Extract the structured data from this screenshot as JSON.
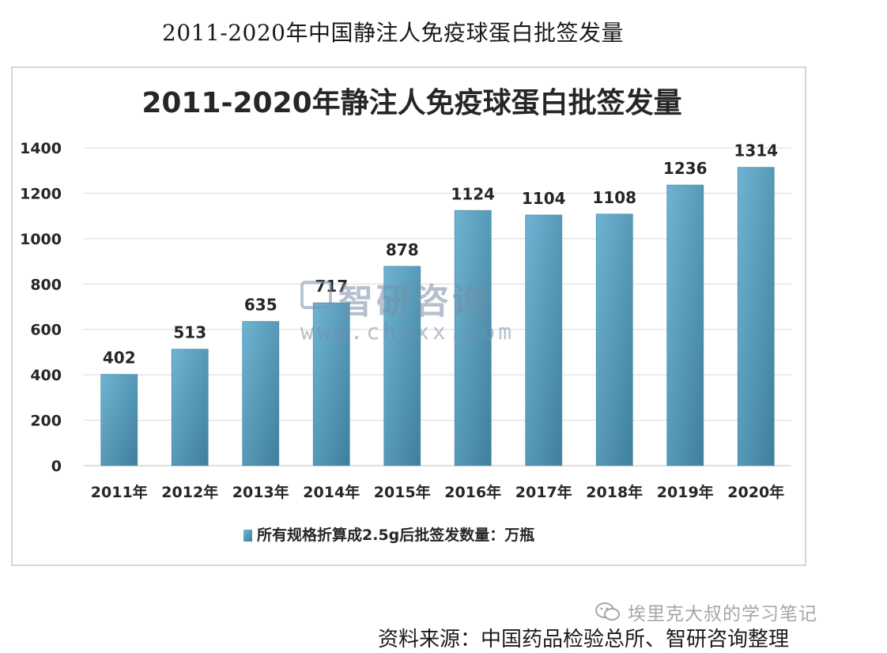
{
  "page_title": "2011-2020年中国静注人免疫球蛋白批签发量",
  "watermark": {
    "brand": "智研咨询",
    "url": "www.chyxx.com"
  },
  "wechat_account": "埃里克大叔的学习笔记",
  "source": "资料来源：中国药品检验总所、智研咨询整理",
  "chart_data": {
    "type": "bar",
    "title": "2011-2020年静注人免疫球蛋白批签发量",
    "categories": [
      "2011年",
      "2012年",
      "2013年",
      "2014年",
      "2015年",
      "2016年",
      "2017年",
      "2018年",
      "2019年",
      "2020年"
    ],
    "series": [
      {
        "name": "所有规格折算成2.5g后批签发数量：万瓶",
        "values": [
          402,
          513,
          635,
          717,
          878,
          1124,
          1104,
          1108,
          1236,
          1314
        ]
      }
    ],
    "data_labels": [
      "402",
      "513",
      "635",
      "717",
      "878",
      "1124",
      "1104",
      "1108",
      "1236",
      "1314"
    ],
    "yticks": [
      "0",
      "200",
      "400",
      "600",
      "800",
      "1000",
      "1200",
      "1400"
    ],
    "ylim": [
      0,
      1400
    ],
    "grid": true,
    "legend_position": "bottom",
    "colors": {
      "bar_top": "#6eb4d2",
      "bar_bottom": "#3f7f9c",
      "grid": "#d9d9d9",
      "axis": "#bfbfbf",
      "text": "#262626"
    }
  }
}
